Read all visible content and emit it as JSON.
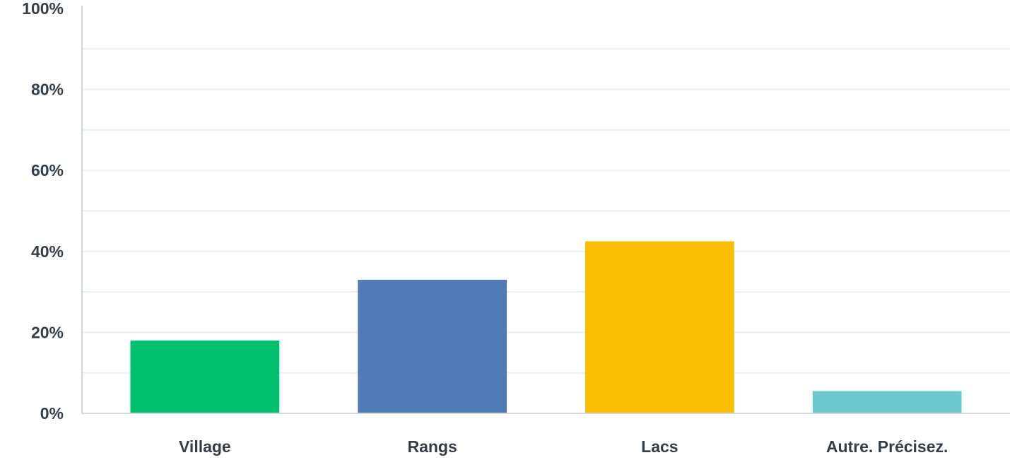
{
  "chart_data": {
    "type": "bar",
    "categories": [
      "Village",
      "Rangs",
      "Lacs",
      "Autre. Précisez."
    ],
    "values": [
      18,
      33,
      42.5,
      5.5
    ],
    "colors": [
      "#00bf6f",
      "#507cb6",
      "#f9be00",
      "#6bc8cd"
    ],
    "ylim": [
      0,
      100
    ],
    "y_ticks": [
      "0%",
      "20%",
      "40%",
      "60%",
      "80%",
      "100%"
    ],
    "y_tick_values": [
      0,
      20,
      40,
      60,
      80,
      100
    ],
    "minor_grid_values": [
      10,
      30,
      50,
      70,
      90
    ],
    "grid": true,
    "title": "",
    "xlabel": "",
    "ylabel": ""
  }
}
